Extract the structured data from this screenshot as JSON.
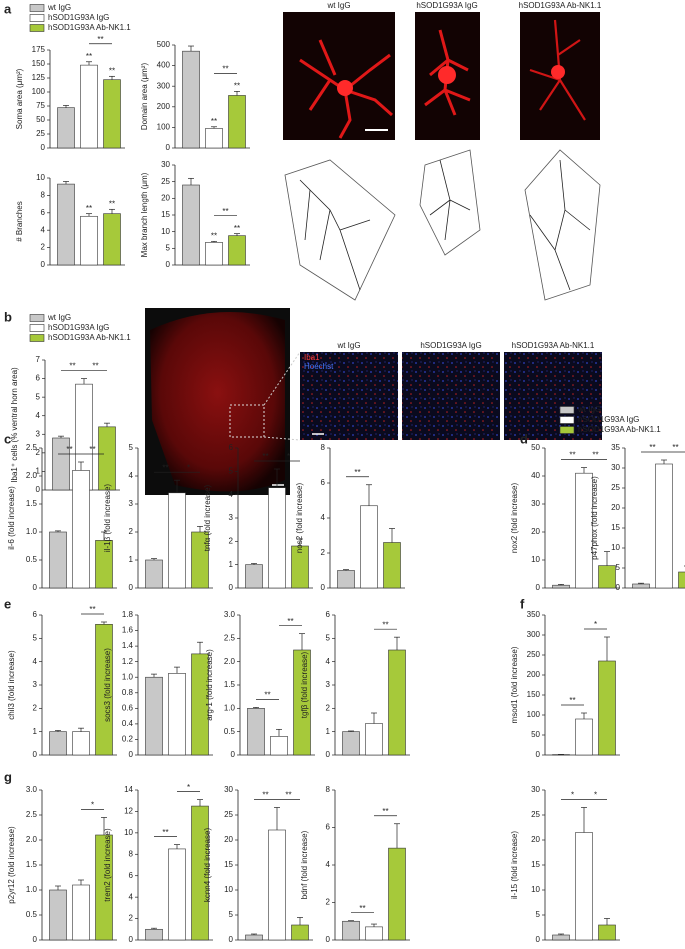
{
  "panels": [
    "a",
    "b",
    "c",
    "d",
    "e",
    "f",
    "g"
  ],
  "legend": [
    {
      "name": "wt IgG",
      "color": "#c8c8c8"
    },
    {
      "name": "hSOD1G93A IgG",
      "color": "#ffffff"
    },
    {
      "name": "hSOD1G93A Ab-NK1.1",
      "color": "#a6c93a"
    }
  ],
  "image_labels": [
    "Iba1",
    "Hoechst"
  ],
  "chart_data": [
    {
      "type": "bar",
      "ylabel": "Soma area (μm²)",
      "ylim": [
        0,
        175
      ],
      "yticks": [
        0,
        25,
        50,
        75,
        100,
        125,
        150,
        175
      ],
      "values": [
        72,
        148,
        122
      ],
      "errors": [
        4,
        6,
        6
      ],
      "sig": [
        {
          "text": "**",
          "bar": 1
        },
        {
          "text": "**",
          "bar": 2
        },
        {
          "text": "**",
          "from": 1,
          "to": 2
        }
      ]
    },
    {
      "type": "bar",
      "ylabel": "Domain area (μm²)",
      "ylim": [
        0,
        500
      ],
      "yticks": [
        0,
        100,
        200,
        300,
        400,
        500
      ],
      "values": [
        470,
        95,
        255
      ],
      "errors": [
        25,
        8,
        20
      ],
      "sig": [
        {
          "text": "**",
          "bar": 1
        },
        {
          "text": "**",
          "bar": 2
        },
        {
          "text": "**",
          "from": 1,
          "to": 2
        }
      ]
    },
    {
      "type": "bar",
      "ylabel": "# Branches",
      "ylim": [
        0,
        10
      ],
      "yticks": [
        0,
        2,
        4,
        6,
        8,
        10
      ],
      "values": [
        9.3,
        5.6,
        5.9
      ],
      "errors": [
        0.3,
        0.3,
        0.5
      ],
      "sig": [
        {
          "text": "**",
          "bar": 1
        },
        {
          "text": "**",
          "bar": 2
        }
      ]
    },
    {
      "type": "bar",
      "ylabel": "Max branch length (μm)",
      "ylim": [
        0,
        30
      ],
      "yticks": [
        0,
        5,
        10,
        15,
        20,
        25,
        30
      ],
      "values": [
        24,
        6.8,
        8.8
      ],
      "errors": [
        2,
        0.3,
        0.6
      ],
      "sig": [
        {
          "text": "**",
          "bar": 1
        },
        {
          "text": "**",
          "bar": 2
        },
        {
          "text": "**",
          "from": 1,
          "to": 2
        }
      ]
    },
    {
      "type": "bar",
      "ylabel": "Iba1⁺ cells (% ventral horn area)",
      "ylim": [
        0,
        7
      ],
      "yticks": [
        0,
        1,
        2,
        3,
        4,
        5,
        6,
        7
      ],
      "values": [
        2.8,
        5.7,
        3.4
      ],
      "errors": [
        0.1,
        0.3,
        0.2
      ],
      "sig": [
        {
          "text": "**",
          "from": 0,
          "to": 1
        },
        {
          "text": "**",
          "from": 1,
          "to": 2
        }
      ]
    },
    {
      "type": "bar",
      "ylabel": "il-6 (fold increase)",
      "ylim": [
        0,
        2.5
      ],
      "yticks": [
        0,
        0.5,
        {
          "value": 1,
          "label": "1.0"
        },
        1.5,
        {
          "value": 2,
          "label": "2.0"
        },
        2.5
      ],
      "values": [
        1,
        2.1,
        0.85
      ],
      "errors": [
        0.02,
        0.15,
        0.15
      ],
      "sig": [
        {
          "text": "**",
          "from": 0,
          "to": 1
        },
        {
          "text": "**",
          "from": 1,
          "to": 2
        }
      ]
    },
    {
      "type": "bar",
      "ylabel": "il-1β (fold increase)",
      "ylim": [
        0,
        5
      ],
      "yticks": [
        0,
        1,
        2,
        3,
        4,
        5
      ],
      "values": [
        1,
        3.4,
        2.0
      ],
      "errors": [
        0.05,
        0.45,
        0.2
      ],
      "sig": [
        {
          "text": "**",
          "from": 0,
          "to": 1
        },
        {
          "text": "*",
          "from": 1,
          "to": 2
        }
      ]
    },
    {
      "type": "bar",
      "ylabel": "tnfα (fold increase)",
      "ylim": [
        0,
        6
      ],
      "yticks": [
        0,
        1,
        2,
        3,
        4,
        5,
        6
      ],
      "values": [
        1,
        4.3,
        1.8
      ],
      "errors": [
        0.05,
        0.8,
        0.3
      ],
      "sig": [
        {
          "text": "**",
          "from": 0,
          "to": 1
        },
        {
          "text": "*",
          "from": 1,
          "to": 2
        }
      ]
    },
    {
      "type": "bar",
      "ylabel": "nos2 (fold increase)",
      "ylim": [
        0,
        8
      ],
      "yticks": [
        0,
        2,
        4,
        6,
        8
      ],
      "values": [
        1,
        4.7,
        2.6
      ],
      "errors": [
        0.05,
        1.2,
        0.8
      ],
      "sig": [
        {
          "text": "**",
          "from": 0,
          "to": 1
        }
      ]
    },
    {
      "type": "bar",
      "ylabel": "nox2 (fold increase)",
      "ylim": [
        0,
        50
      ],
      "yticks": [
        0,
        10,
        20,
        30,
        40,
        50
      ],
      "values": [
        1,
        41,
        8
      ],
      "errors": [
        0.3,
        2,
        5
      ],
      "sig": [
        {
          "text": "**",
          "from": 0,
          "to": 1
        },
        {
          "text": "**",
          "from": 1,
          "to": 2
        }
      ]
    },
    {
      "type": "bar",
      "ylabel": "p47phox (fold increase)",
      "ylim": [
        0,
        35
      ],
      "yticks": [
        0,
        5,
        10,
        15,
        20,
        25,
        30,
        35
      ],
      "values": [
        1,
        31,
        4
      ],
      "errors": [
        0.2,
        1,
        1.5
      ],
      "sig": [
        {
          "text": "**",
          "from": 0,
          "to": 1
        },
        {
          "text": "**",
          "from": 1,
          "to": 2
        }
      ]
    },
    {
      "type": "bar",
      "ylabel": "chil3 (fold increase)",
      "ylim": [
        0,
        6
      ],
      "yticks": [
        0,
        1,
        2,
        3,
        4,
        5,
        6
      ],
      "values": [
        1,
        1.0,
        5.6
      ],
      "errors": [
        0.05,
        0.15,
        0.1
      ],
      "sig": [
        {
          "text": "**",
          "from": 1,
          "to": 2
        }
      ]
    },
    {
      "type": "bar",
      "ylabel": "socs3 (fold increase)",
      "ylim": [
        0,
        1.8
      ],
      "yticks": [
        0,
        0.2,
        0.4,
        0.6,
        0.8,
        {
          "value": 1,
          "label": "1.0"
        },
        1.2,
        1.4,
        1.6,
        1.8
      ],
      "values": [
        1.0,
        1.05,
        1.3
      ],
      "errors": [
        0.04,
        0.08,
        0.15
      ],
      "sig": []
    },
    {
      "type": "bar",
      "ylabel": "arg-1 (fold increase)",
      "ylim": [
        0,
        3
      ],
      "yticks": [
        0,
        0.5,
        {
          "value": 1,
          "label": "1.0"
        },
        1.5,
        {
          "value": 2,
          "label": "2.0"
        },
        2.5,
        {
          "value": 3,
          "label": "3.0"
        }
      ],
      "values": [
        1,
        0.4,
        2.25
      ],
      "errors": [
        0.02,
        0.15,
        0.35
      ],
      "sig": [
        {
          "text": "**",
          "from": 0,
          "to": 1
        },
        {
          "text": "**",
          "from": 1,
          "to": 2
        }
      ]
    },
    {
      "type": "bar",
      "ylabel": "tgfβ (fold increase)",
      "ylim": [
        0,
        6
      ],
      "yticks": [
        0,
        1,
        2,
        3,
        4,
        5,
        6
      ],
      "values": [
        1,
        1.35,
        4.5
      ],
      "errors": [
        0.03,
        0.45,
        0.55
      ],
      "sig": [
        {
          "text": "**",
          "from": 1,
          "to": 2
        }
      ]
    },
    {
      "type": "bar",
      "ylabel": "msod1 (fold increase)",
      "ylim": [
        0,
        350
      ],
      "yticks": [
        0,
        50,
        100,
        150,
        200,
        250,
        300,
        350
      ],
      "values": [
        1,
        90,
        235
      ],
      "errors": [
        0.5,
        15,
        60
      ],
      "sig": [
        {
          "text": "**",
          "from": 0,
          "to": 1
        },
        {
          "text": "*",
          "from": 1,
          "to": 2
        }
      ]
    },
    {
      "type": "bar",
      "ylabel": "p2yr12 (fold increase)",
      "ylim": [
        0,
        3
      ],
      "yticks": [
        0,
        0.5,
        {
          "value": 1,
          "label": "1.0"
        },
        1.5,
        {
          "value": 2,
          "label": "2.0"
        },
        2.5,
        {
          "value": 3,
          "label": "3.0"
        }
      ],
      "values": [
        1,
        1.1,
        2.1
      ],
      "errors": [
        0.08,
        0.1,
        0.35
      ],
      "sig": [
        {
          "text": "*",
          "from": 1,
          "to": 2
        }
      ]
    },
    {
      "type": "bar",
      "ylabel": "trem2 (fold increase)",
      "ylim": [
        0,
        14
      ],
      "yticks": [
        0,
        2,
        4,
        6,
        8,
        10,
        12,
        14
      ],
      "values": [
        1,
        8.5,
        12.5
      ],
      "errors": [
        0.1,
        0.4,
        0.6
      ],
      "sig": [
        {
          "text": "**",
          "from": 0,
          "to": 1
        },
        {
          "text": "*",
          "from": 1,
          "to": 2
        }
      ]
    },
    {
      "type": "bar",
      "ylabel": "kcnn4 (fold increase)",
      "ylim": [
        0,
        30
      ],
      "yticks": [
        0,
        5,
        10,
        15,
        20,
        25,
        30
      ],
      "values": [
        1,
        22,
        3
      ],
      "errors": [
        0.2,
        4.5,
        1.5
      ],
      "sig": [
        {
          "text": "**",
          "from": 0,
          "to": 1
        },
        {
          "text": "**",
          "from": 1,
          "to": 2
        }
      ]
    },
    {
      "type": "bar",
      "ylabel": "bdnf (fold increase)",
      "ylim": [
        0,
        8
      ],
      "yticks": [
        0,
        2,
        4,
        6,
        8
      ],
      "values": [
        1,
        0.7,
        4.9
      ],
      "errors": [
        0.03,
        0.15,
        1.3
      ],
      "sig": [
        {
          "text": "**",
          "from": 0,
          "to": 1
        },
        {
          "text": "**",
          "from": 1,
          "to": 2
        }
      ]
    },
    {
      "type": "bar",
      "ylabel": "il-15 (fold increase)",
      "ylim": [
        0,
        30
      ],
      "yticks": [
        0,
        5,
        10,
        15,
        20,
        25,
        30
      ],
      "values": [
        1,
        21.5,
        3
      ],
      "errors": [
        0.2,
        5,
        1.3
      ],
      "sig": [
        {
          "text": "*",
          "from": 0,
          "to": 1
        },
        {
          "text": "*",
          "from": 1,
          "to": 2
        }
      ]
    }
  ]
}
